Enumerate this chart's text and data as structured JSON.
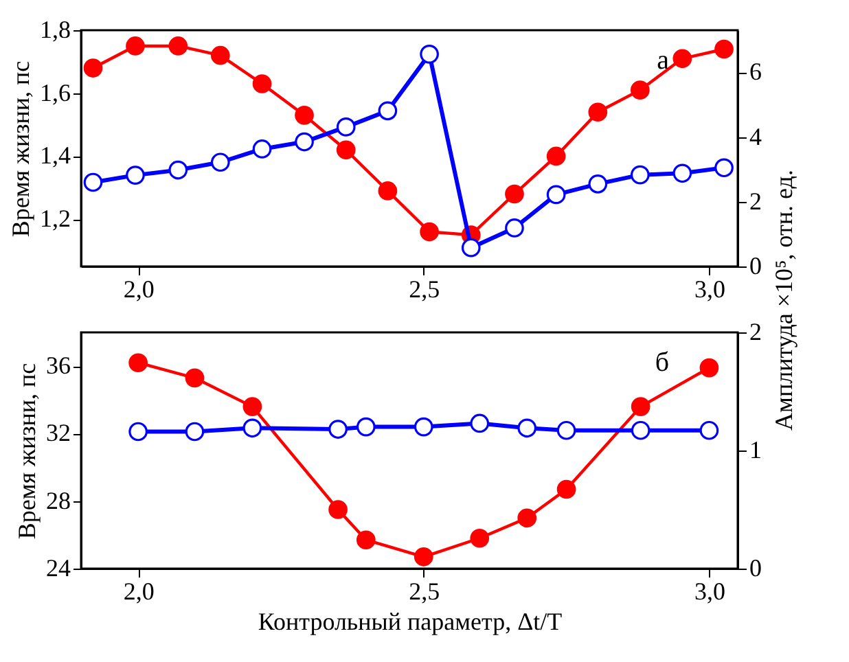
{
  "chart_data": [
    {
      "type": "line",
      "xlim": [
        1.9,
        3.05
      ],
      "xticks": [
        {
          "value": 2.0,
          "label": "2,0"
        },
        {
          "value": 2.5,
          "label": "2,5"
        },
        {
          "value": 3.0,
          "label": "3,0"
        }
      ],
      "ylabel": "Время жизни, пс",
      "y2label": "Амплитуда ×10⁵, отн. ед.",
      "ylim": [
        1.05,
        1.8
      ],
      "yticks": [
        {
          "value": 1.2,
          "label": "1,2"
        },
        {
          "value": 1.4,
          "label": "1,4"
        },
        {
          "value": 1.6,
          "label": "1,6"
        },
        {
          "value": 1.8,
          "label": "1,8"
        }
      ],
      "y2lim": [
        0,
        7.3
      ],
      "y2ticks": [
        0,
        2,
        4,
        6
      ],
      "marker": "circle",
      "line_style": "solid",
      "grid": false,
      "annotations": [
        "а"
      ],
      "series": [
        {
          "color": "#ff0000",
          "x": [
            1.921,
            1.995,
            2.07,
            2.144,
            2.217,
            2.291,
            2.364,
            2.437,
            2.51,
            2.583,
            2.659,
            2.732,
            2.805,
            2.879,
            2.953,
            3.026
          ],
          "values": [
            1.68,
            1.75,
            1.75,
            1.72,
            1.63,
            1.53,
            1.42,
            1.29,
            1.16,
            1.15,
            1.28,
            1.4,
            1.54,
            1.61,
            1.71,
            1.74
          ]
        },
        {
          "color": "#0000ff",
          "axis": "y2",
          "x": [
            1.921,
            1.995,
            2.07,
            2.144,
            2.217,
            2.291,
            2.364,
            2.437,
            2.51,
            2.583,
            2.659,
            2.732,
            2.805,
            2.879,
            2.953,
            3.026
          ],
          "values": [
            2.6,
            2.82,
            2.98,
            3.22,
            3.63,
            3.85,
            4.31,
            4.81,
            6.56,
            0.58,
            1.19,
            2.22,
            2.55,
            2.83,
            2.88,
            3.05
          ]
        }
      ]
    },
    {
      "type": "line",
      "xlim": [
        1.9,
        3.05
      ],
      "xticks": [
        {
          "value": 2.0,
          "label": "2,0"
        },
        {
          "value": 2.5,
          "label": "2,5"
        },
        {
          "value": 3.0,
          "label": "3,0"
        }
      ],
      "xlabel": "Контрольный параметр, Δt/T",
      "ylabel": "Время жизни, пс",
      "ylim": [
        24,
        38
      ],
      "yticks": [
        24,
        28,
        32,
        36
      ],
      "y2lim": [
        0,
        2
      ],
      "y2ticks": [
        0,
        1,
        2
      ],
      "marker": "circle",
      "line_style": "solid",
      "grid": false,
      "annotations": [
        "б"
      ],
      "series": [
        {
          "color": "#ff0000",
          "x": [
            2.0,
            2.099,
            2.2,
            2.35,
            2.399,
            2.5,
            2.598,
            2.681,
            2.75,
            2.88,
            3.0
          ],
          "values": [
            36.2,
            35.3,
            33.6,
            27.5,
            25.7,
            24.7,
            25.8,
            27.0,
            28.7,
            33.6,
            35.9
          ]
        },
        {
          "color": "#0000ff",
          "axis": "y2",
          "x": [
            2.0,
            2.099,
            2.2,
            2.35,
            2.399,
            2.5,
            2.598,
            2.681,
            2.75,
            2.88,
            3.0
          ],
          "values": [
            1.16,
            1.16,
            1.19,
            1.18,
            1.2,
            1.2,
            1.23,
            1.19,
            1.17,
            1.17,
            1.17
          ]
        }
      ]
    }
  ]
}
